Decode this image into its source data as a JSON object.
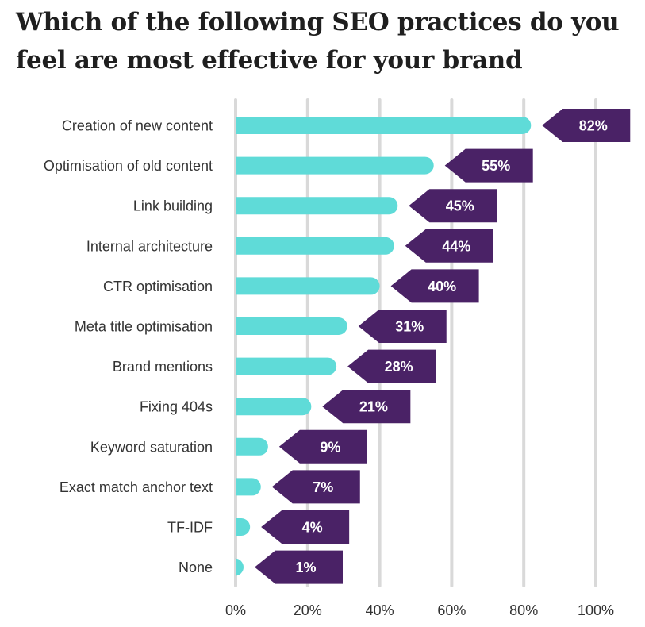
{
  "title": "Which of the following SEO practices do you feel are most effective for your brand",
  "colors": {
    "bar": "#5fdbd8",
    "label_bg": "#4a2266",
    "label_text": "#ffffff",
    "grid": "#d9d9d9",
    "text": "#333333"
  },
  "chart_data": {
    "type": "bar",
    "orientation": "horizontal",
    "title": "Which of the following SEO practices do you feel are most effective for your brand",
    "categories": [
      "Creation of new content",
      "Optimisation of old content",
      "Link building",
      "Internal architecture",
      "CTR optimisation",
      "Meta title optimisation",
      "Brand mentions",
      "Fixing 404s",
      "Keyword saturation",
      "Exact match anchor text",
      "TF-IDF",
      "None"
    ],
    "values": [
      82,
      55,
      45,
      44,
      40,
      31,
      28,
      21,
      9,
      7,
      4,
      1
    ],
    "value_labels": [
      "82%",
      "55%",
      "45%",
      "44%",
      "40%",
      "31%",
      "28%",
      "21%",
      "9%",
      "7%",
      "4%",
      "1%"
    ],
    "xlim": [
      0,
      100
    ],
    "xticks": [
      0,
      20,
      40,
      60,
      80,
      100
    ],
    "xtick_labels": [
      "0%",
      "20%",
      "40%",
      "60%",
      "80%",
      "100%"
    ],
    "xlabel": "",
    "ylabel": "",
    "grid": true,
    "legend": "none"
  }
}
